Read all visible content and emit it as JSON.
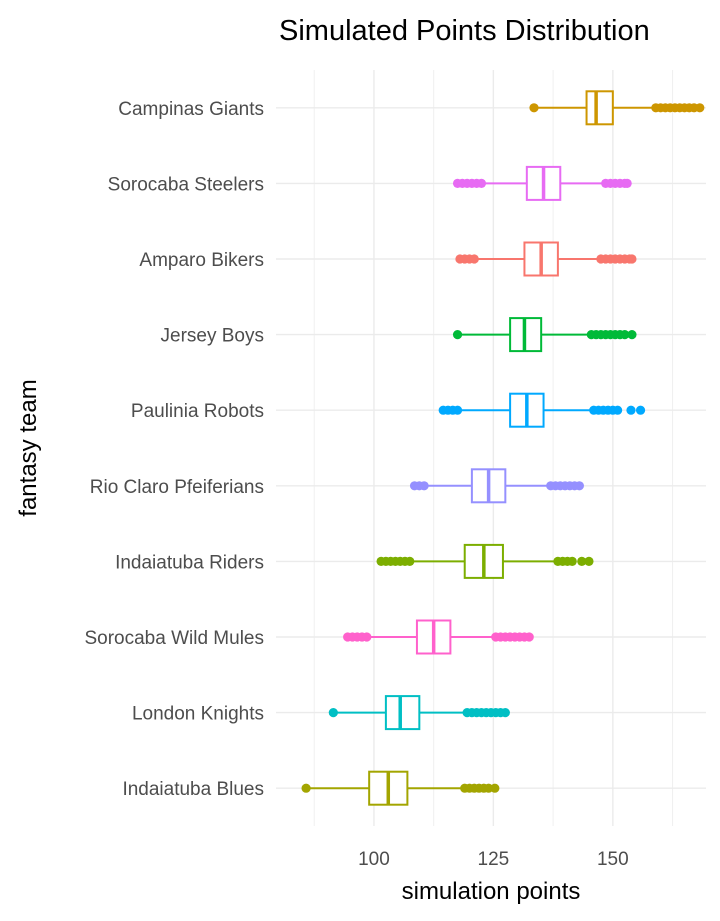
{
  "chart_data": {
    "type": "boxplot",
    "orientation": "horizontal",
    "title": "Simulated Points Distribution",
    "xlabel": "simulation points",
    "ylabel": "fantasy team",
    "xlim": [
      79.5,
      169.5
    ],
    "x_ticks": [
      100,
      125,
      150
    ],
    "x_tick_labels": [
      "100",
      "125",
      "150"
    ],
    "grid": true,
    "legend": "none",
    "series": [
      {
        "name": "Campinas Giants",
        "color": "#CD9600",
        "q1": 144.5,
        "median": 146.5,
        "q3": 150.0,
        "whisker_low": 134.0,
        "whisker_high": 159.0,
        "outliers": [
          133.5,
          159.0,
          160.0,
          161.0,
          162.0,
          163.0,
          164.0,
          165.0,
          166.0,
          167.0,
          168.2
        ]
      },
      {
        "name": "Sorocaba Steelers",
        "color": "#E76BF3",
        "q1": 132.0,
        "median": 135.5,
        "q3": 139.0,
        "whisker_low": 122.5,
        "whisker_high": 148.5,
        "outliers": [
          117.5,
          118.5,
          119.5,
          120.5,
          121.5,
          122.5,
          148.5,
          149.5,
          150.5,
          151.5,
          152.5,
          153.0
        ]
      },
      {
        "name": "Amparo Bikers",
        "color": "#F8766D",
        "q1": 131.5,
        "median": 135.0,
        "q3": 138.5,
        "whisker_low": 121.5,
        "whisker_high": 147.5,
        "outliers": [
          118.0,
          119.0,
          120.0,
          121.0,
          147.5,
          148.5,
          149.5,
          150.5,
          151.5,
          152.5,
          153.5,
          154.0
        ]
      },
      {
        "name": "Jersey Boys",
        "color": "#00BA38",
        "q1": 128.5,
        "median": 131.5,
        "q3": 135.0,
        "whisker_low": 118.0,
        "whisker_high": 145.0,
        "outliers": [
          117.5,
          145.5,
          146.5,
          147.5,
          148.5,
          149.5,
          150.5,
          151.5,
          152.5,
          154.0
        ]
      },
      {
        "name": "Paulinia Robots",
        "color": "#00A9FF",
        "q1": 128.5,
        "median": 132.0,
        "q3": 135.5,
        "whisker_low": 118.0,
        "whisker_high": 146.0,
        "outliers": [
          114.5,
          115.5,
          116.5,
          117.5,
          146.0,
          147.0,
          148.0,
          149.0,
          150.0,
          151.0,
          153.8,
          155.8
        ]
      },
      {
        "name": "Rio Claro Pfeiferians",
        "color": "#9590FF",
        "q1": 120.5,
        "median": 124.0,
        "q3": 127.5,
        "whisker_low": 110.5,
        "whisker_high": 137.0,
        "outliers": [
          108.5,
          109.5,
          110.5,
          137.0,
          138.0,
          139.0,
          140.0,
          141.0,
          142.0,
          143.0
        ]
      },
      {
        "name": "Indaiatuba Riders",
        "color": "#7CAE00",
        "q1": 119.0,
        "median": 123.0,
        "q3": 127.0,
        "whisker_low": 107.5,
        "whisker_high": 138.5,
        "outliers": [
          101.5,
          102.5,
          103.5,
          104.5,
          105.5,
          106.5,
          107.5,
          138.5,
          139.5,
          140.5,
          141.5,
          143.5,
          145.0
        ]
      },
      {
        "name": "Sorocaba Wild Mules",
        "color": "#FF61CC",
        "q1": 109.0,
        "median": 112.5,
        "q3": 116.0,
        "whisker_low": 99.0,
        "whisker_high": 125.5,
        "outliers": [
          94.5,
          95.5,
          96.5,
          97.5,
          98.5,
          125.5,
          126.5,
          127.5,
          128.5,
          129.5,
          130.5,
          131.5,
          132.5
        ]
      },
      {
        "name": "London Knights",
        "color": "#00BFC4",
        "q1": 102.5,
        "median": 105.5,
        "q3": 109.5,
        "whisker_low": 92.0,
        "whisker_high": 119.5,
        "outliers": [
          91.5,
          119.5,
          120.5,
          121.5,
          122.5,
          123.5,
          124.5,
          125.5,
          126.5,
          127.5
        ]
      },
      {
        "name": "Indaiatuba Blues",
        "color": "#A3A500",
        "q1": 99.0,
        "median": 103.0,
        "q3": 107.0,
        "whisker_low": 86.0,
        "whisker_high": 119.0,
        "outliers": [
          85.8,
          119.0,
          120.0,
          121.0,
          122.0,
          123.0,
          124.0,
          125.3
        ]
      }
    ]
  }
}
